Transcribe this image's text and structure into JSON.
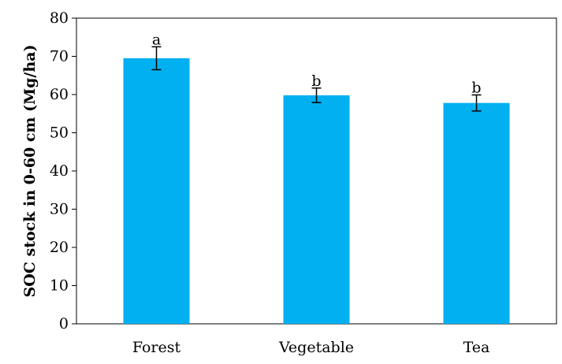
{
  "chart_data": {
    "type": "bar",
    "title": "",
    "xlabel": "",
    "ylabel": "SOC  stock in 0-60 cm (Mg/ha)",
    "categories": [
      "Forest",
      "Vegetable",
      "Tea"
    ],
    "values": [
      69.5,
      59.8,
      57.8
    ],
    "errors": [
      3.0,
      1.9,
      2.1
    ],
    "annotations": [
      "a",
      "b",
      "b"
    ],
    "ylim": [
      0,
      80
    ],
    "yticks": [
      "0",
      "10",
      "20",
      "30",
      "40",
      "50",
      "60",
      "70",
      "80"
    ],
    "grid": false,
    "bar_color": "#00b0f0",
    "error_bar_color": "#000000"
  }
}
